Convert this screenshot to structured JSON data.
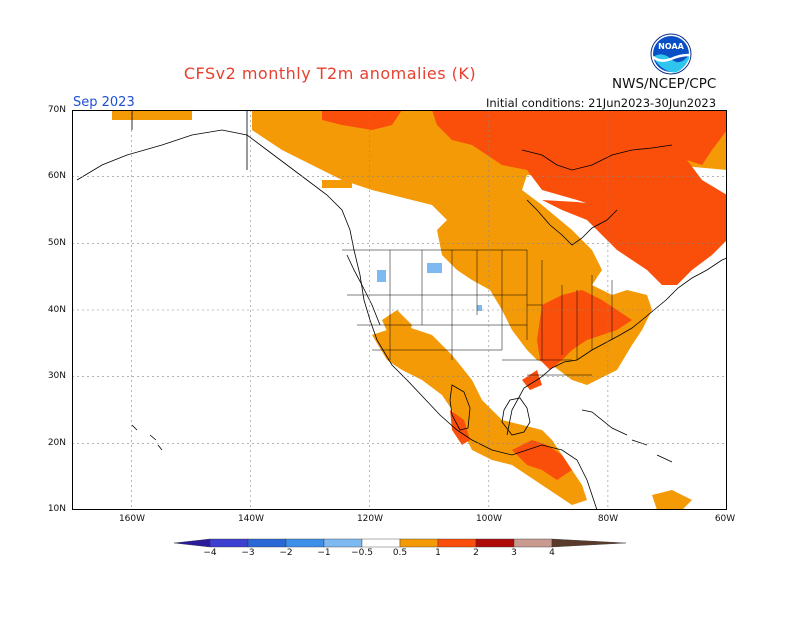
{
  "title": "CFSv2 monthly T2m anomalies (K)",
  "org": "NWS/NCEP/CPC",
  "logo_text": "NOAA",
  "period": "Sep 2023",
  "initial_conditions": "Initial conditions: 21Jun2023-30Jun2023",
  "lat_labels": [
    "70N",
    "60N",
    "50N",
    "40N",
    "30N",
    "20N",
    "10N"
  ],
  "lon_labels": [
    "160W",
    "140W",
    "120W",
    "100W",
    "80W",
    "60W"
  ],
  "colorbar": {
    "labels": [
      "−4",
      "−3",
      "−2",
      "−1",
      "−0.5",
      "0.5",
      "1",
      "2",
      "3",
      "4"
    ],
    "colors": [
      "#2a1a9c",
      "#3d3fd0",
      "#2a68d6",
      "#3d90ea",
      "#7fb9f2",
      "#ffffff",
      "#f49a07",
      "#fa4f0b",
      "#ae0b0b",
      "#c99a90",
      "#5a3a2a"
    ]
  },
  "chart_data": {
    "type": "heatmap",
    "variable": "T2m anomaly",
    "units": "K",
    "valid_month": "Sep 2023",
    "lat_range": [
      10,
      70
    ],
    "lon_range": [
      -170,
      -60
    ],
    "levels": [
      -4,
      -3,
      -2,
      -1,
      -0.5,
      0.5,
      1,
      2,
      3,
      4
    ],
    "regions": [
      {
        "region": "Eastern Canada / Quebec / Labrador",
        "anomaly_K": 1.5
      },
      {
        "region": "Northern Canada (Arctic)",
        "anomaly_K": 1.5
      },
      {
        "region": "Canadian Prairies / Hudson Bay south",
        "anomaly_K": 0.75
      },
      {
        "region": "US Southeast / Ohio Valley",
        "anomaly_K": 0.75
      },
      {
        "region": "US Northeast / Great Lakes",
        "anomaly_K": 1.5
      },
      {
        "region": "Southwest US / Mexico",
        "anomaly_K": 0.75
      },
      {
        "region": "Southern Mexico / Central America",
        "anomaly_K": 1.5
      },
      {
        "region": "US Northern Plains (small pockets)",
        "anomaly_K": -0.75
      }
    ]
  }
}
